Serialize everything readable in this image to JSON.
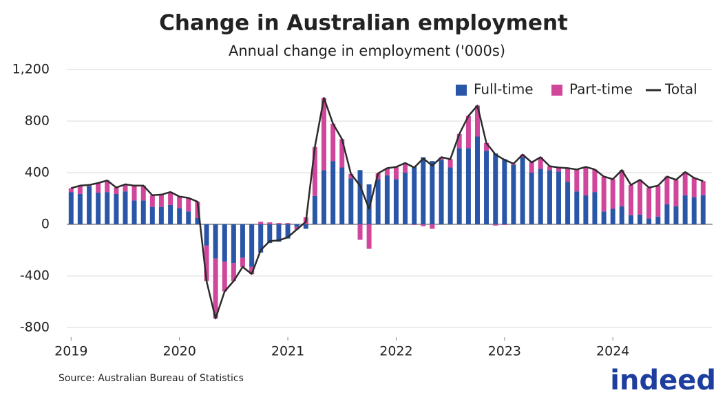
{
  "chart_data": {
    "type": "bar",
    "stacked": true,
    "title": "Change in Australian employment",
    "subtitle": "Annual change in employment ('000s)",
    "source": "Source: Australian Bureau of Statistics",
    "brand": "indeed",
    "x": [
      2019,
      2019.083,
      2019.167,
      2019.25,
      2019.333,
      2019.417,
      2019.5,
      2019.583,
      2019.667,
      2019.75,
      2019.833,
      2019.917,
      2020,
      2020.083,
      2020.167,
      2020.25,
      2020.333,
      2020.417,
      2020.5,
      2020.583,
      2020.667,
      2020.75,
      2020.833,
      2020.917,
      2021,
      2021.083,
      2021.167,
      2021.25,
      2021.333,
      2021.417,
      2021.5,
      2021.583,
      2021.667,
      2021.75,
      2021.833,
      2021.917,
      2022,
      2022.083,
      2022.167,
      2022.25,
      2022.333,
      2022.417,
      2022.5,
      2022.583,
      2022.667,
      2022.75,
      2022.833,
      2022.917,
      2023,
      2023.083,
      2023.167,
      2023.25,
      2023.333,
      2023.417,
      2023.5,
      2023.583,
      2023.667,
      2023.75,
      2023.833,
      2023.917,
      2024,
      2024.083,
      2024.167,
      2024.25,
      2024.333,
      2024.417,
      2024.5,
      2024.583,
      2024.667,
      2024.75,
      2024.833
    ],
    "series": [
      {
        "name": "Full-time",
        "color": "#2a56a8",
        "values": [
          250,
          235,
          295,
          245,
          250,
          235,
          255,
          185,
          185,
          135,
          135,
          150,
          125,
          100,
          50,
          -165,
          -265,
          -290,
          -300,
          -260,
          -330,
          -220,
          -145,
          -135,
          -110,
          -20,
          -35,
          220,
          420,
          490,
          440,
          355,
          420,
          310,
          350,
          380,
          350,
          400,
          445,
          520,
          490,
          500,
          440,
          590,
          590,
          680,
          570,
          550,
          505,
          460,
          520,
          400,
          430,
          420,
          410,
          330,
          255,
          225,
          250,
          100,
          120,
          140,
          70,
          75,
          45,
          60,
          155,
          140,
          225,
          210,
          225
        ]
      },
      {
        "name": "Part-time",
        "color": "#d0469b",
        "values": [
          30,
          65,
          10,
          75,
          90,
          50,
          55,
          115,
          115,
          90,
          95,
          100,
          90,
          105,
          125,
          -275,
          -465,
          -230,
          -140,
          -70,
          -55,
          20,
          15,
          10,
          10,
          -20,
          55,
          380,
          560,
          290,
          220,
          35,
          -120,
          -190,
          45,
          55,
          95,
          75,
          -5,
          -15,
          -35,
          20,
          65,
          110,
          250,
          240,
          60,
          -10,
          -5,
          10,
          20,
          80,
          90,
          30,
          30,
          105,
          170,
          220,
          175,
          270,
          230,
          280,
          235,
          270,
          240,
          240,
          215,
          205,
          180,
          150,
          110
        ]
      },
      {
        "name": "Total",
        "type": "line",
        "color": "#2b2b2b",
        "values": [
          280,
          300,
          305,
          320,
          340,
          285,
          310,
          300,
          300,
          225,
          230,
          250,
          215,
          205,
          175,
          -440,
          -730,
          -520,
          -440,
          -330,
          -385,
          -200,
          -130,
          -125,
          -100,
          -40,
          20,
          600,
          980,
          780,
          660,
          390,
          300,
          120,
          395,
          435,
          445,
          475,
          440,
          510,
          455,
          520,
          505,
          700,
          840,
          920,
          630,
          540,
          500,
          470,
          540,
          480,
          520,
          450,
          440,
          435,
          425,
          445,
          425,
          370,
          350,
          420,
          305,
          345,
          285,
          300,
          370,
          345,
          405,
          360,
          335
        ]
      }
    ],
    "xlim": [
      2018.96,
      2024.92
    ],
    "xticks": [
      2019,
      2020,
      2021,
      2022,
      2023,
      2024
    ],
    "ylim": [
      -800,
      1200
    ],
    "yticks": [
      -800,
      -400,
      0,
      400,
      800,
      {
        "value": 1200,
        "label": "1,200"
      }
    ],
    "grid": true,
    "legend": "upper right"
  }
}
